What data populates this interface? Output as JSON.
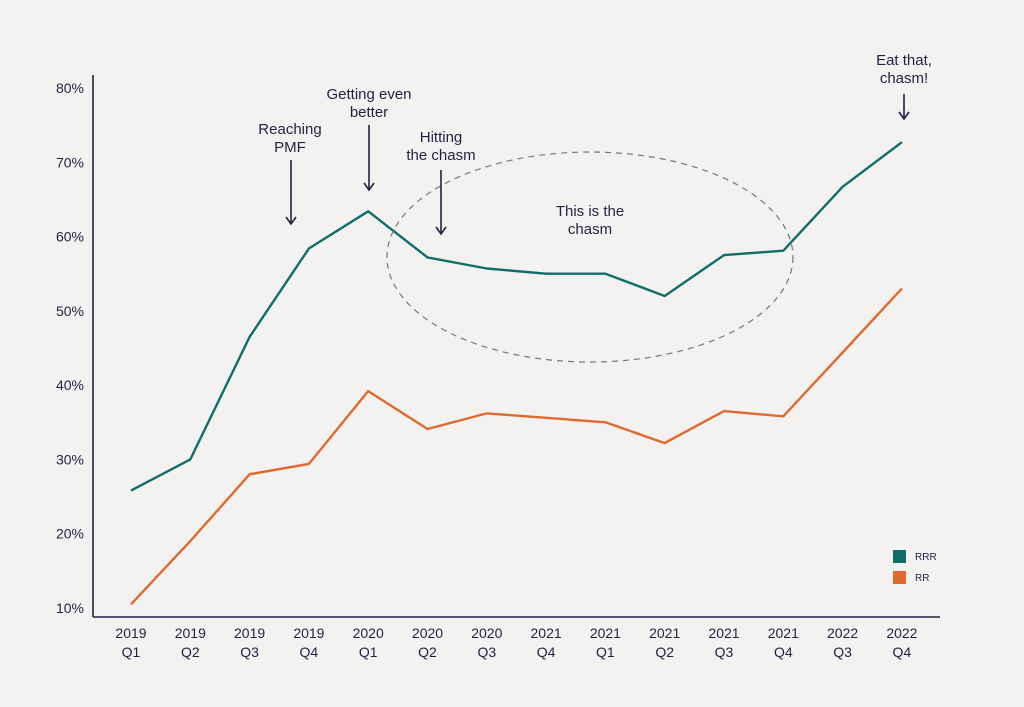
{
  "chart_data": {
    "type": "line",
    "title": "",
    "xlabel": "",
    "ylabel": "",
    "ylim": [
      10,
      80
    ],
    "grid": false,
    "legend_position": "bottom-right",
    "categories": [
      [
        "2019",
        "Q1"
      ],
      [
        "2019",
        "Q2"
      ],
      [
        "2019",
        "Q3"
      ],
      [
        "2019",
        "Q4"
      ],
      [
        "2020",
        "Q1"
      ],
      [
        "2020",
        "Q2"
      ],
      [
        "2020",
        "Q3"
      ],
      [
        "2021",
        "Q4"
      ],
      [
        "2021",
        "Q1"
      ],
      [
        "2021",
        "Q2"
      ],
      [
        "2021",
        "Q3"
      ],
      [
        "2021",
        "Q4"
      ],
      [
        "2022",
        "Q3"
      ],
      [
        "2022",
        "Q4"
      ]
    ],
    "y_ticks": [
      "10%",
      "20%",
      "30%",
      "40%",
      "50%",
      "60%",
      "70%",
      "80%"
    ],
    "y_tick_values": [
      10,
      20,
      30,
      40,
      50,
      60,
      70,
      80
    ],
    "series": [
      {
        "name": "RRR",
        "color": "#0f6e6a",
        "values": [
          25.8,
          30.0,
          46.5,
          58.4,
          63.4,
          57.2,
          55.7,
          55.0,
          55.0,
          52.0,
          57.5,
          58.1,
          66.7,
          72.7
        ]
      },
      {
        "name": "RR",
        "color": "#e06a2d",
        "values": [
          10.5,
          19.0,
          28.0,
          29.4,
          39.2,
          34.1,
          36.2,
          35.6,
          35.0,
          32.2,
          36.5,
          35.8,
          44.4,
          53.0
        ]
      }
    ],
    "annotations": [
      {
        "lines": [
          "Reaching",
          "PMF"
        ],
        "x_index": 3
      },
      {
        "lines": [
          "Getting even",
          "better"
        ],
        "x_index": 4
      },
      {
        "lines": [
          "Hitting",
          "the chasm"
        ],
        "x_index": 5
      },
      {
        "lines": [
          "Eat that,",
          "chasm!"
        ],
        "x_index": 13
      },
      {
        "lines": [
          "This is the",
          "chasm"
        ],
        "x_index": null
      }
    ]
  }
}
